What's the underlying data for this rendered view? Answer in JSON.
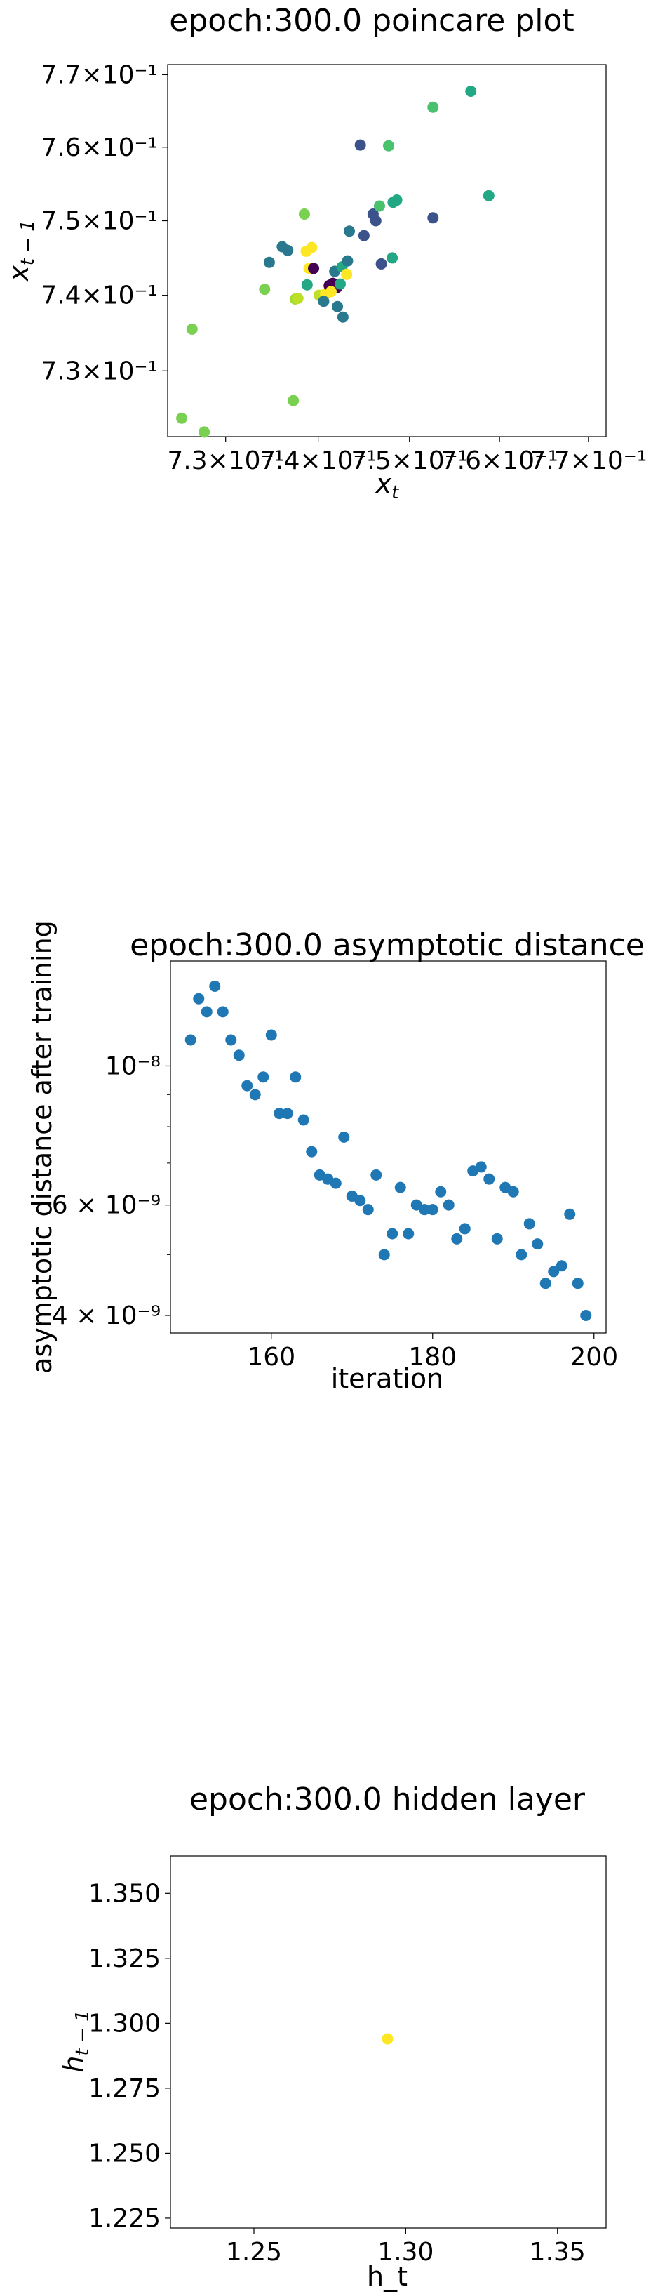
{
  "chart_data": [
    {
      "type": "scatter",
      "title": "epoch:300.0 poincare plot",
      "xlabel": "x_t",
      "ylabel": "x_{t-1}",
      "xscale": "log",
      "yscale": "log",
      "xlim": [
        0.7238,
        0.772
      ],
      "ylim": [
        0.7214,
        0.7714
      ],
      "grid": false,
      "colormap": "viridis",
      "xtick_labels": [
        {
          "value": 0.73,
          "label": "7.3×10⁻¹"
        },
        {
          "value": 0.74,
          "label": "7.4×10⁻¹"
        },
        {
          "value": 0.75,
          "label": "7.5×10⁻¹"
        },
        {
          "value": 0.76,
          "label": "7.6×10⁻¹"
        },
        {
          "value": 0.77,
          "label": "7.7×10⁻¹"
        }
      ],
      "ytick_labels": [
        {
          "value": 0.73,
          "label": "7.3×10⁻¹"
        },
        {
          "value": 0.74,
          "label": "7.4×10⁻¹"
        },
        {
          "value": 0.75,
          "label": "7.5×10⁻¹"
        },
        {
          "value": 0.76,
          "label": "7.6×10⁻¹"
        },
        {
          "value": 0.77,
          "label": "7.7×10⁻¹"
        }
      ],
      "points": [
        {
          "x": 0.7253,
          "y": 0.7238,
          "color": "#7ad151"
        },
        {
          "x": 0.7277,
          "y": 0.722,
          "color": "#7ad151"
        },
        {
          "x": 0.7264,
          "y": 0.7355,
          "color": "#7ad151"
        },
        {
          "x": 0.7342,
          "y": 0.7408,
          "color": "#7ad151"
        },
        {
          "x": 0.7373,
          "y": 0.7261,
          "color": "#7ad151"
        },
        {
          "x": 0.7375,
          "y": 0.7395,
          "color": "#a5db36"
        },
        {
          "x": 0.7378,
          "y": 0.7396,
          "color": "#bddf26"
        },
        {
          "x": 0.7385,
          "y": 0.7509,
          "color": "#7ad151"
        },
        {
          "x": 0.7387,
          "y": 0.7459,
          "color": "#fde725"
        },
        {
          "x": 0.739,
          "y": 0.7436,
          "color": "#fde725"
        },
        {
          "x": 0.7393,
          "y": 0.7464,
          "color": "#fde725"
        },
        {
          "x": 0.7395,
          "y": 0.7436,
          "color": "#440154"
        },
        {
          "x": 0.7388,
          "y": 0.7414,
          "color": "#22a884"
        },
        {
          "x": 0.7361,
          "y": 0.7465,
          "color": "#2a788e"
        },
        {
          "x": 0.7367,
          "y": 0.746,
          "color": "#2a788e"
        },
        {
          "x": 0.7347,
          "y": 0.7444,
          "color": "#2a788e"
        },
        {
          "x": 0.7401,
          "y": 0.74,
          "color": "#bddf26"
        },
        {
          "x": 0.7408,
          "y": 0.7402,
          "color": "#fde725"
        },
        {
          "x": 0.7406,
          "y": 0.7392,
          "color": "#2a788e"
        },
        {
          "x": 0.7412,
          "y": 0.7413,
          "color": "#440154"
        },
        {
          "x": 0.7416,
          "y": 0.7416,
          "color": "#440154"
        },
        {
          "x": 0.742,
          "y": 0.741,
          "color": "#440154"
        },
        {
          "x": 0.7414,
          "y": 0.7405,
          "color": "#fde725"
        },
        {
          "x": 0.7418,
          "y": 0.7432,
          "color": "#2a788e"
        },
        {
          "x": 0.7421,
          "y": 0.7385,
          "color": "#2a788e"
        },
        {
          "x": 0.7424,
          "y": 0.7415,
          "color": "#22a884"
        },
        {
          "x": 0.7426,
          "y": 0.7438,
          "color": "#22a884"
        },
        {
          "x": 0.7427,
          "y": 0.7371,
          "color": "#2a788e"
        },
        {
          "x": 0.7431,
          "y": 0.7428,
          "color": "#fde725"
        },
        {
          "x": 0.7432,
          "y": 0.7446,
          "color": "#2a788e"
        },
        {
          "x": 0.7434,
          "y": 0.7486,
          "color": "#2a788e"
        },
        {
          "x": 0.7446,
          "y": 0.7603,
          "color": "#3b528b"
        },
        {
          "x": 0.745,
          "y": 0.748,
          "color": "#3b528b"
        },
        {
          "x": 0.746,
          "y": 0.7509,
          "color": "#3b528b"
        },
        {
          "x": 0.7463,
          "y": 0.75,
          "color": "#3b528b"
        },
        {
          "x": 0.7467,
          "y": 0.752,
          "color": "#4ac16d"
        },
        {
          "x": 0.7469,
          "y": 0.7442,
          "color": "#3b528b"
        },
        {
          "x": 0.7477,
          "y": 0.7602,
          "color": "#4ac16d"
        },
        {
          "x": 0.7481,
          "y": 0.745,
          "color": "#22a884"
        },
        {
          "x": 0.7482,
          "y": 0.7525,
          "color": "#22a884"
        },
        {
          "x": 0.7486,
          "y": 0.7528,
          "color": "#22a884"
        },
        {
          "x": 0.7526,
          "y": 0.7655,
          "color": "#4ac16d"
        },
        {
          "x": 0.7526,
          "y": 0.7504,
          "color": "#3b528b"
        },
        {
          "x": 0.7568,
          "y": 0.7677,
          "color": "#22a884"
        },
        {
          "x": 0.7588,
          "y": 0.7534,
          "color": "#22a884"
        }
      ]
    },
    {
      "type": "scatter",
      "title": "epoch:300.0 asymptotic distance",
      "xlabel": "iteration",
      "ylabel": "asymptotic distance after training",
      "yscale": "log",
      "xlim": [
        147.5,
        201.5
      ],
      "ylim": [
        3.75e-09,
        1.47e-08
      ],
      "grid": false,
      "color": "#1f77b4",
      "xticks": [
        160,
        180,
        200
      ],
      "ytick_labels": [
        {
          "value": 4e-09,
          "label": "4 × 10⁻⁹"
        },
        {
          "value": 6e-09,
          "label": "6 × 10⁻⁹"
        },
        {
          "value": 1e-08,
          "label": "10⁻⁸"
        }
      ],
      "x": [
        150,
        151,
        152,
        153,
        154,
        155,
        156,
        157,
        158,
        159,
        160,
        161,
        162,
        163,
        164,
        165,
        166,
        167,
        168,
        169,
        170,
        171,
        172,
        173,
        174,
        175,
        176,
        177,
        178,
        179,
        180,
        181,
        182,
        183,
        184,
        185,
        186,
        187,
        188,
        189,
        190,
        191,
        192,
        193,
        194,
        195,
        196,
        197,
        198,
        199
      ],
      "y": [
        1.1e-08,
        1.28e-08,
        1.22e-08,
        1.34e-08,
        1.22e-08,
        1.1e-08,
        1.04e-08,
        9.3e-09,
        9e-09,
        9.6e-09,
        1.12e-08,
        8.4e-09,
        8.4e-09,
        9.6e-09,
        8.2e-09,
        7.3e-09,
        6.7e-09,
        6.6e-09,
        6.5e-09,
        7.7e-09,
        6.2e-09,
        6.1e-09,
        5.9e-09,
        6.7e-09,
        5e-09,
        5.4e-09,
        6.4e-09,
        5.4e-09,
        6e-09,
        5.9e-09,
        5.9e-09,
        6.3e-09,
        6e-09,
        5.3e-09,
        5.5e-09,
        6.8e-09,
        6.9e-09,
        6.6e-09,
        5.3e-09,
        6.4e-09,
        6.3e-09,
        5e-09,
        5.6e-09,
        5.2e-09,
        4.5e-09,
        4.7e-09,
        4.8e-09,
        5.8e-09,
        4.5e-09,
        4e-09
      ]
    },
    {
      "type": "scatter",
      "title": "epoch:300.0 hidden layer",
      "xlabel": "h_t",
      "ylabel": "h_{t-1}",
      "xlim": [
        1.2225,
        1.366
      ],
      "ylim": [
        1.2212,
        1.3644
      ],
      "grid": false,
      "xticks": [
        1.25,
        1.3,
        1.35
      ],
      "xtick_labels": [
        "1.25",
        "1.30",
        "1.35"
      ],
      "yticks": [
        1.225,
        1.25,
        1.275,
        1.3,
        1.325,
        1.35
      ],
      "ytick_labels": [
        "1.225",
        "1.250",
        "1.275",
        "1.300",
        "1.325",
        "1.350"
      ],
      "points": [
        {
          "x": 1.294,
          "y": 1.294,
          "color": "#fde725"
        }
      ]
    }
  ]
}
